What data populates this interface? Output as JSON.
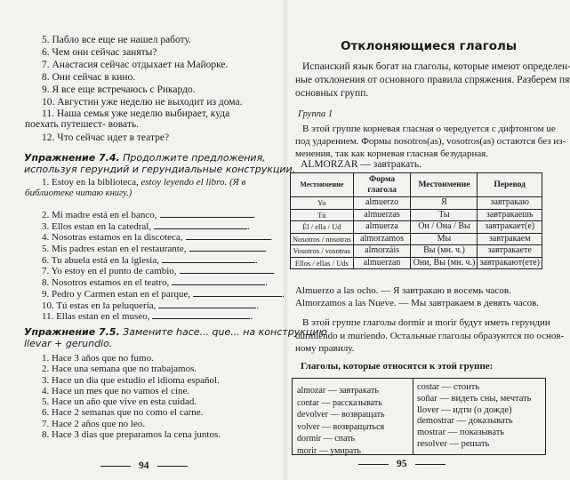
{
  "left_page": {
    "items_top": [
      "5.  Пабло все еще не нашел работу.",
      "6.  Чем они сейчас заняты?",
      "7.  Анастасия сейчас отдыхает на Майорке.",
      "8.  Они сейчас в кино.",
      "9.  Я все еще встречаюсь с Рикардо.",
      "10.  Августин уже неделю не выходит из дома.",
      "11.  Наша семья уже неделю выбирает, куда поехать путешест-",
      "вовать.",
      "12.  Что сейчас идет в театре?"
    ],
    "ex74": {
      "title": "Упражнение 7.4.",
      "instruction_1": "Продолжите предложения,",
      "instruction_2": "используя герундий и герундиальные конструкции.",
      "item1_a": "1.  Estoy en la biblioteca, ",
      "item1_b": "estoy leyendo el libro. (Я в библиотеке",
      "item1_c": "читаю книгу.)",
      "items": [
        "2.  Mi madre está en el banco,",
        "3.  Ellos estan en la catedral,",
        "4.  Nosotras estamos en la discoteca,",
        "5.  Mis padres estan en el restaurante,",
        "6.  Tu abuela está en la iglesia,",
        "7.  Yo estoy en el punto de cambio,",
        "8.  Nosotros estamos en el teatro,",
        "9.  Pedro y Carmen estan en el parque,",
        "10.  Tú estas en la peluquería,",
        "11.  Ellas estan en el museo,"
      ]
    },
    "ex75": {
      "title": "Упражнение 7.5.",
      "instruction_1": "Замените hace... que... на конструкцию",
      "instruction_2": "llevar + gerundio.",
      "items": [
        "1.  Hace 3 años que no fumo.",
        "2.  Hace una semana que no trabajamos.",
        "3.  Hace un dia que estudio el idioma español.",
        "4.  Hace un mes que no vamos el cine.",
        "5.  Hace un año que vive en esta cuidad.",
        "6.  Hace 2 semanas que no como el carne.",
        "7.  Hace 2 años que no leo.",
        "8.  Hace 3 dias que preparamos la cena juntos."
      ]
    },
    "page_number": "94"
  },
  "right_page": {
    "title": "Отклоняющиеся глаголы",
    "intro": [
      "Испанский язык богат на глаголы, которые имеют определен-",
      "ные отклонения от основного правила спряжения. Разберем пять",
      "основных групп."
    ],
    "group_label": "Группа 1",
    "group_text": [
      "В этой группе корневая гласная o чередуется с дифтонгом ue",
      "под ударением. Формы nosotros(as), vosotros(as) остаются без из-",
      "менения, так как корневая гласная безударная."
    ],
    "verb_line": "ALMORZAR — завтракать.",
    "table": {
      "headers": [
        "Местоимение",
        "Форма глагола",
        "Местоимение",
        "Перевод"
      ],
      "rows": [
        [
          "Yo",
          "almuerzo",
          "Я",
          "завтракаю"
        ],
        [
          "Tú",
          "almuerzas",
          "Ты",
          "завтракаешь"
        ],
        [
          "Él / ella / Ud",
          "almuerza",
          "Он / Она / Вы",
          "завтракает(е)"
        ],
        [
          "Nosotros / nosotras",
          "almorzamos",
          "Мы",
          "завтракаем"
        ],
        [
          "Vosotros / vosotras",
          "almorzáis",
          "Вы (мн. ч.)",
          "завтракаете"
        ],
        [
          "Ellos / ellas / Uds",
          "almuerzan",
          "Они, Вы (мн. ч.)",
          "завтракают(ете)"
        ]
      ]
    },
    "examples": [
      "Almuerzo a las ocho. — Я завтракаю в восемь часов.",
      "Almorzamos a las Nueve. — Мы завтракаем в девять часов."
    ],
    "gerund_text": [
      "В этой группе глаголы dormir и morir будут иметь герундии",
      "durmiendo и muriendo. Остальные глаголы образуются по основ-",
      "ному правилу."
    ],
    "list_heading": "Глаголы, которые относятся к этой группе:",
    "verbs_left": [
      "almozar — завтракать",
      "contar — рассказывать",
      "devolver — возвращать",
      "volver — возвращаться",
      "dormir — спать",
      "morir — умирать"
    ],
    "verbs_right": [
      "costar — стоить",
      "soñar — видеть сны, мечтать",
      "llover — идти (о дожде)",
      "demostrar — доказывать",
      "mostrar — показывать",
      "resolver — решать"
    ],
    "page_number": "95"
  }
}
